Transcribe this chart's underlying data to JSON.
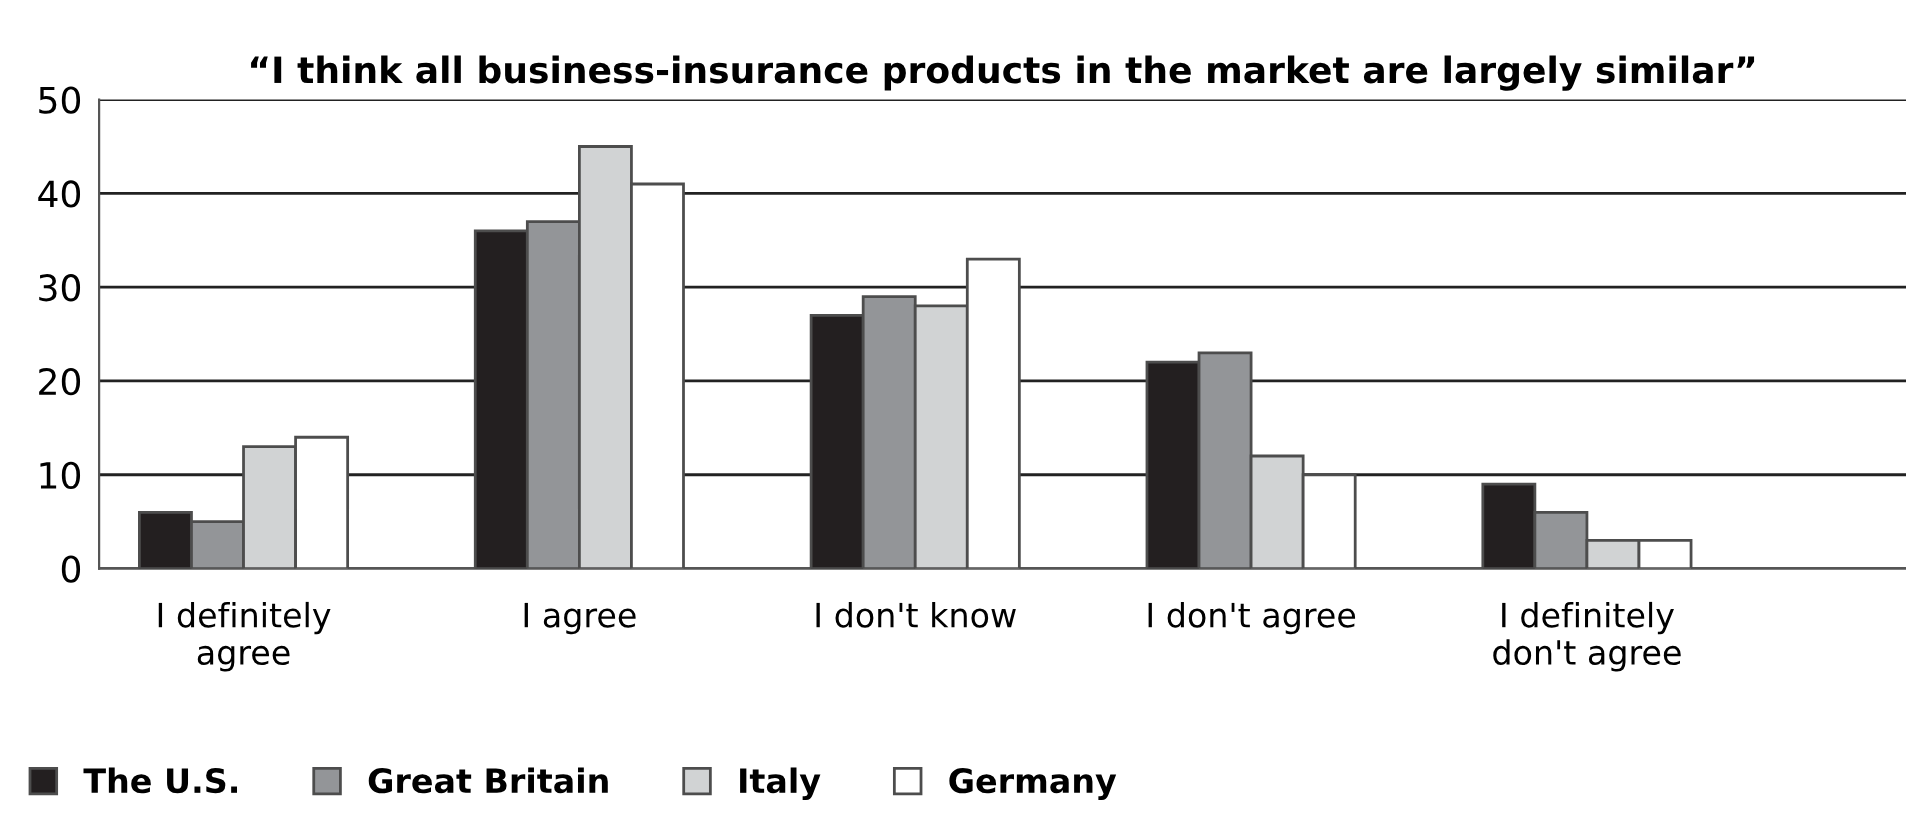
{
  "chart_data": {
    "type": "bar",
    "title": "“I think all business-insurance products in the market are largely similar”",
    "categories": [
      "I definitely\nagree",
      "I agree",
      "I don't know",
      "I don't agree",
      "I definitely\ndon't agree"
    ],
    "series": [
      {
        "name": "The U.S.",
        "color": "#231f20",
        "values": [
          6,
          36,
          27,
          22,
          9
        ]
      },
      {
        "name": "Great Britain",
        "color": "#939598",
        "values": [
          5,
          37,
          29,
          23,
          6
        ]
      },
      {
        "name": "Italy",
        "color": "#d1d3d4",
        "values": [
          13,
          45,
          28,
          12,
          3
        ]
      },
      {
        "name": "Germany",
        "color": "#ffffff",
        "values": [
          14,
          41,
          33,
          10,
          3
        ]
      }
    ],
    "ylim": [
      0,
      50
    ],
    "yticks": [
      0,
      10,
      20,
      30,
      40,
      50
    ],
    "grid": "y",
    "legend": "bottom left"
  }
}
